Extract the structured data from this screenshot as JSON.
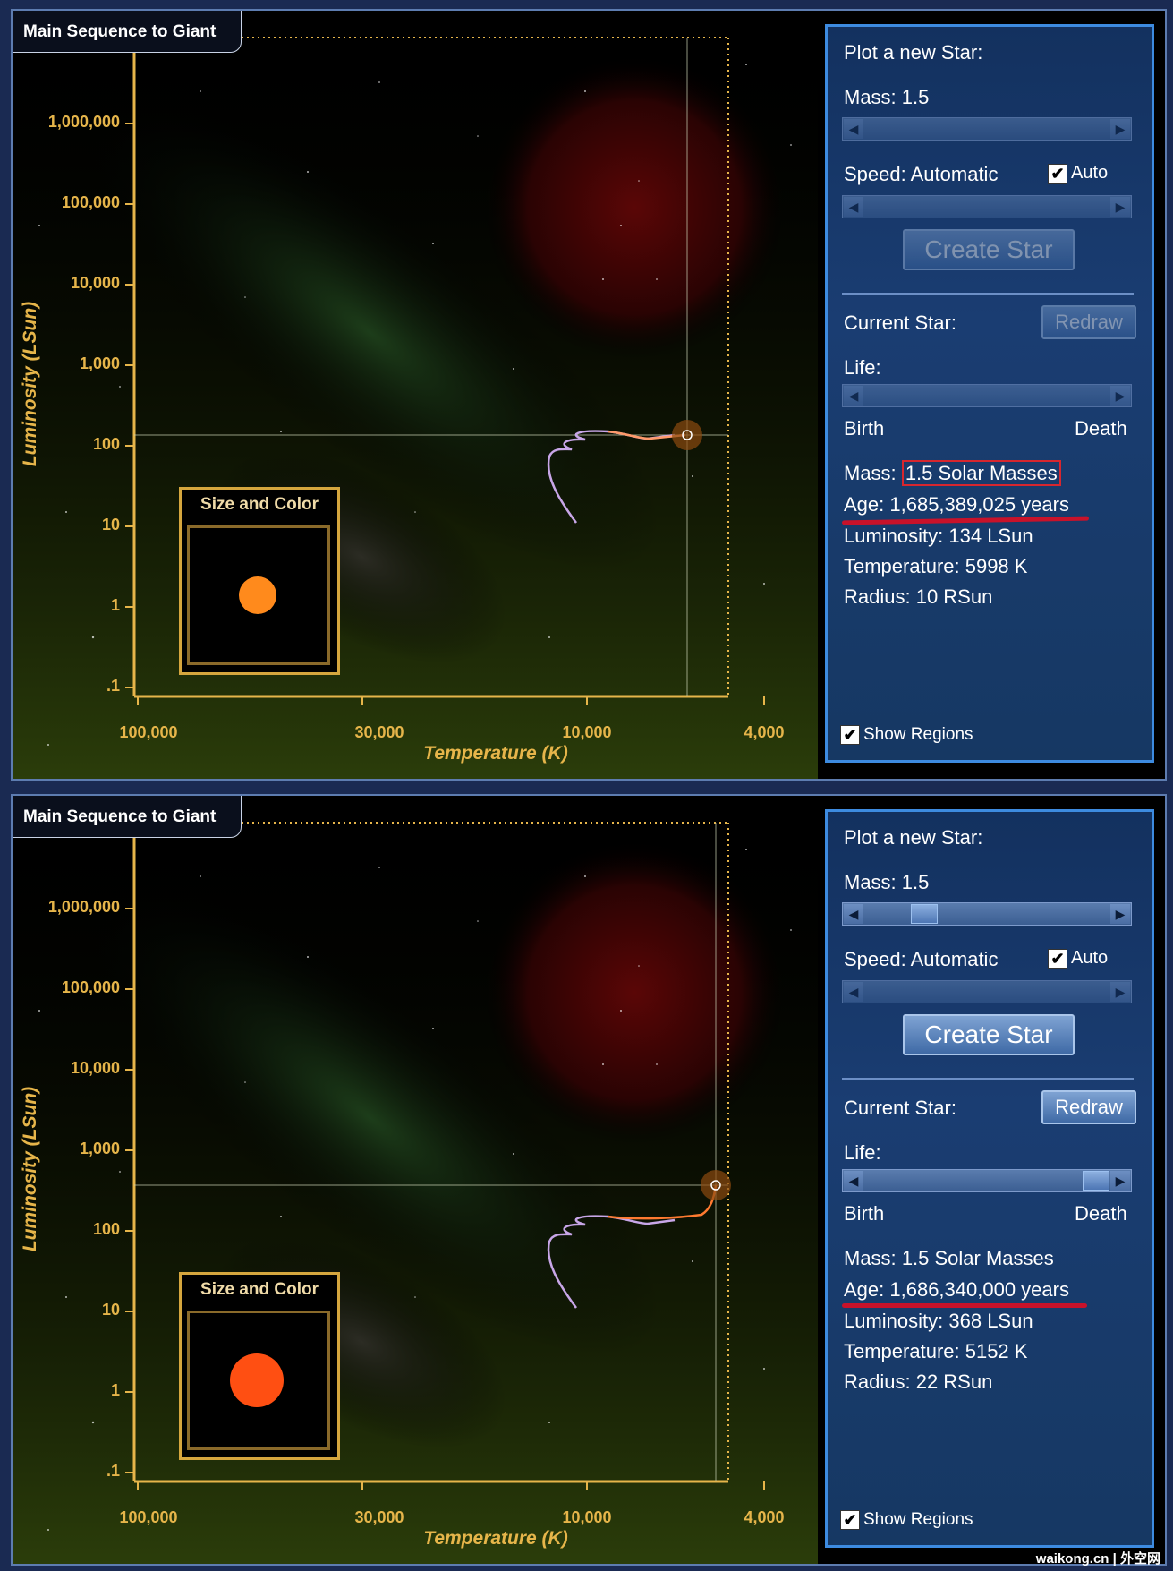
{
  "frames": [
    {
      "sim_title": "Main Sequence to Giant",
      "size_box_title": "Size and Color",
      "star_color": "#ff8a1c",
      "plot": {
        "ylabel": "Luminosity (LSun)",
        "xlabel": "Temperature (K)",
        "yticks": [
          "1,000,000",
          "100,000",
          "10,000",
          "1,000",
          "100",
          "10",
          "1",
          ".1"
        ],
        "xticks": [
          "100,000",
          "30,000",
          "10,000",
          "4,000"
        ]
      },
      "panel": {
        "plot_new_star": "Plot a new Star:",
        "mass_label": "Mass: 1.5",
        "speed_label": "Speed: Automatic",
        "auto_label": "Auto",
        "create_star": "Create Star",
        "current_star": "Current Star:",
        "redraw": "Redraw",
        "life_label": "Life:",
        "birth": "Birth",
        "death": "Death",
        "mass_prefix": "Mass:",
        "mass_value": "1.5 Solar Masses",
        "age": "Age: 1,685,389,025 years",
        "luminosity": "Luminosity: 134 LSun",
        "temperature": "Temperature: 5998 K",
        "radius": "Radius: 10 RSun",
        "show_regions": "Show Regions",
        "controls_enabled": false
      }
    },
    {
      "sim_title": "Main Sequence to Giant",
      "size_box_title": "Size and Color",
      "star_color": "#ff4f12",
      "plot": {
        "ylabel": "Luminosity (LSun)",
        "xlabel": "Temperature (K)",
        "yticks": [
          "1,000,000",
          "100,000",
          "10,000",
          "1,000",
          "100",
          "10",
          "1",
          ".1"
        ],
        "xticks": [
          "100,000",
          "30,000",
          "10,000",
          "4,000"
        ]
      },
      "panel": {
        "plot_new_star": "Plot a new Star:",
        "mass_label": "Mass: 1.5",
        "speed_label": "Speed: Automatic",
        "auto_label": "Auto",
        "create_star": "Create Star",
        "current_star": "Current Star:",
        "redraw": "Redraw",
        "life_label": "Life:",
        "birth": "Birth",
        "death": "Death",
        "mass_prefix": "Mass:",
        "mass_value": "1.5 Solar Masses",
        "age": "Age: 1,686,340,000 years",
        "luminosity": "Luminosity: 368 LSun",
        "temperature": "Temperature: 5152 K",
        "radius": "Radius: 22 RSun",
        "show_regions": "Show Regions",
        "controls_enabled": true
      }
    }
  ],
  "watermark": "waikong.cn | 外空网"
}
